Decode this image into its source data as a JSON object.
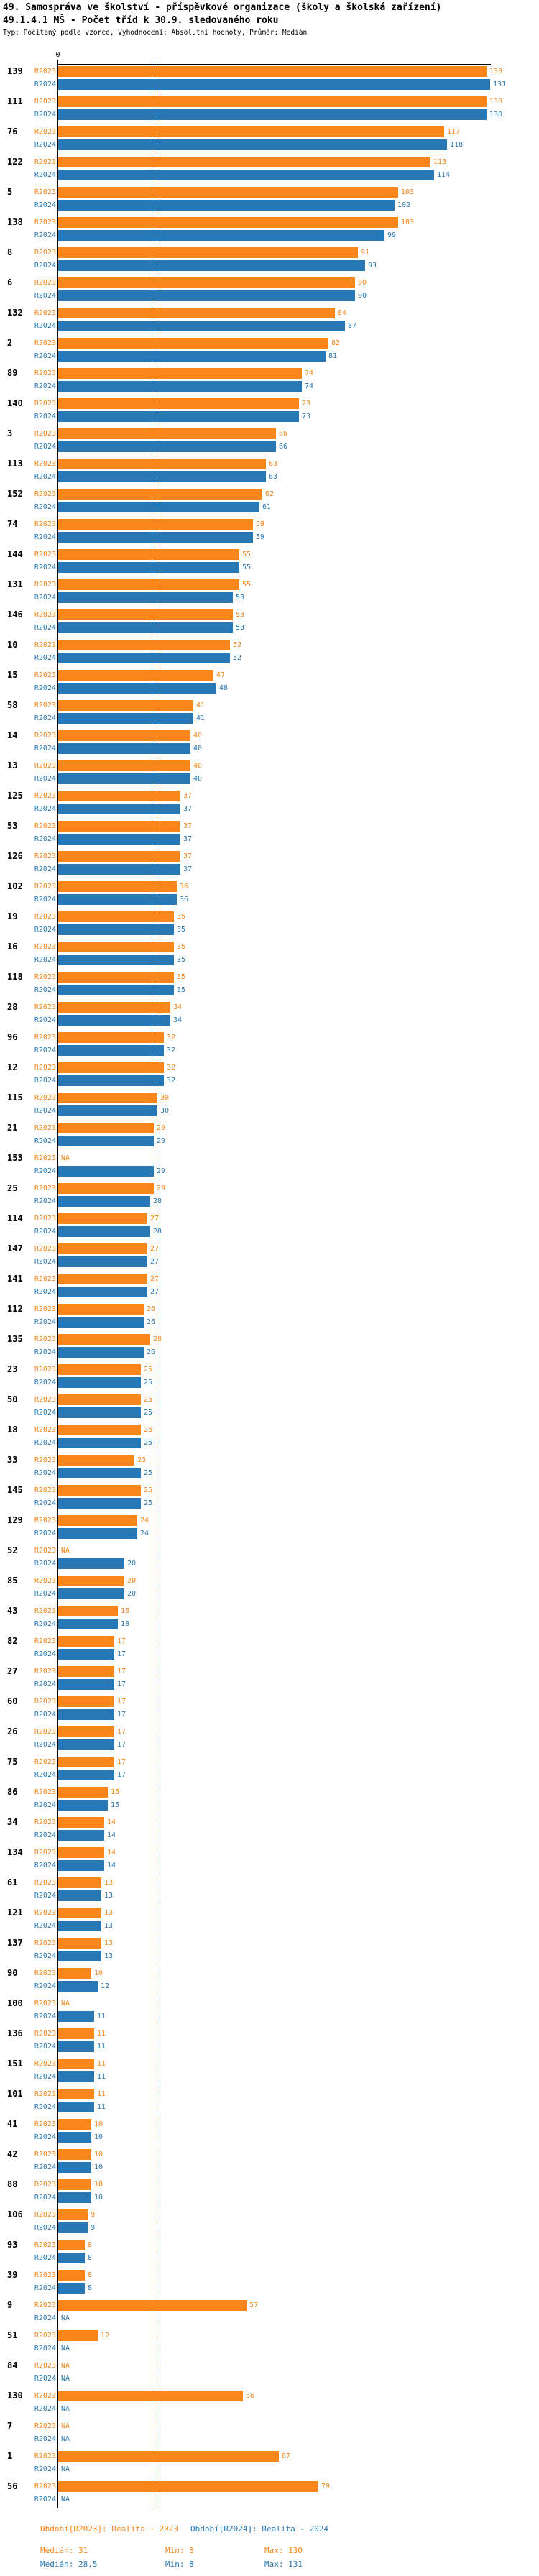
{
  "header": {
    "title_line1": "49. Samospráva ve školství - příspěvkové organizace (školy a školská zařízení)",
    "title_line2": "49.1.4.1 MŠ - Počet tříd k 30.9. sledovaného roku",
    "meta_line": "Typ: Počítaný podle vzorce, Vyhodnocení: Absolutní hodnoty, Průměr: Medián"
  },
  "colors": {
    "r2023": "#F8861B",
    "r2024": "#2878B5",
    "axis": "#000000"
  },
  "chart_data": {
    "type": "bar",
    "orientation": "horizontal",
    "title": "49.1.4.1 MŠ - Počet tříd k 30.9. sledovaného roku",
    "series_labels": [
      "R2023",
      "R2024"
    ],
    "axis_zero_label": "0",
    "na_label": "NA",
    "xlim": [
      0,
      131
    ],
    "grid": false,
    "medians": {
      "R2023": 31,
      "R2024": 28.5
    },
    "groups": [
      {
        "id": "139",
        "R2023": 130,
        "R2024": 131
      },
      {
        "id": "111",
        "R2023": 130,
        "R2024": 130
      },
      {
        "id": "76",
        "R2023": 117,
        "R2024": 118
      },
      {
        "id": "122",
        "R2023": 113,
        "R2024": 114
      },
      {
        "id": "5",
        "R2023": 103,
        "R2024": 102
      },
      {
        "id": "138",
        "R2023": 103,
        "R2024": 99
      },
      {
        "id": "8",
        "R2023": 91,
        "R2024": 93
      },
      {
        "id": "6",
        "R2023": 90,
        "R2024": 90
      },
      {
        "id": "132",
        "R2023": 84,
        "R2024": 87
      },
      {
        "id": "2",
        "R2023": 82,
        "R2024": 81
      },
      {
        "id": "89",
        "R2023": 74,
        "R2024": 74
      },
      {
        "id": "140",
        "R2023": 73,
        "R2024": 73
      },
      {
        "id": "3",
        "R2023": 66,
        "R2024": 66
      },
      {
        "id": "113",
        "R2023": 63,
        "R2024": 63
      },
      {
        "id": "152",
        "R2023": 62,
        "R2024": 61
      },
      {
        "id": "74",
        "R2023": 59,
        "R2024": 59
      },
      {
        "id": "144",
        "R2023": 55,
        "R2024": 55
      },
      {
        "id": "131",
        "R2023": 55,
        "R2024": 53
      },
      {
        "id": "146",
        "R2023": 53,
        "R2024": 53
      },
      {
        "id": "10",
        "R2023": 52,
        "R2024": 52
      },
      {
        "id": "15",
        "R2023": 47,
        "R2024": 48
      },
      {
        "id": "58",
        "R2023": 41,
        "R2024": 41
      },
      {
        "id": "14",
        "R2023": 40,
        "R2024": 40
      },
      {
        "id": "13",
        "R2023": 40,
        "R2024": 40
      },
      {
        "id": "125",
        "R2023": 37,
        "R2024": 37
      },
      {
        "id": "53",
        "R2023": 37,
        "R2024": 37
      },
      {
        "id": "126",
        "R2023": 37,
        "R2024": 37
      },
      {
        "id": "102",
        "R2023": 36,
        "R2024": 36
      },
      {
        "id": "19",
        "R2023": 35,
        "R2024": 35
      },
      {
        "id": "16",
        "R2023": 35,
        "R2024": 35
      },
      {
        "id": "118",
        "R2023": 35,
        "R2024": 35
      },
      {
        "id": "28",
        "R2023": 34,
        "R2024": 34
      },
      {
        "id": "96",
        "R2023": 32,
        "R2024": 32
      },
      {
        "id": "12",
        "R2023": 32,
        "R2024": 32
      },
      {
        "id": "115",
        "R2023": 30,
        "R2024": 30
      },
      {
        "id": "21",
        "R2023": 29,
        "R2024": 29
      },
      {
        "id": "153",
        "R2023": null,
        "R2024": 29
      },
      {
        "id": "25",
        "R2023": 29,
        "R2024": 28
      },
      {
        "id": "114",
        "R2023": 27,
        "R2024": 28
      },
      {
        "id": "147",
        "R2023": 27,
        "R2024": 27
      },
      {
        "id": "141",
        "R2023": 27,
        "R2024": 27
      },
      {
        "id": "112",
        "R2023": 26,
        "R2024": 26
      },
      {
        "id": "135",
        "R2023": 28,
        "R2024": 26
      },
      {
        "id": "23",
        "R2023": 25,
        "R2024": 25
      },
      {
        "id": "50",
        "R2023": 25,
        "R2024": 25
      },
      {
        "id": "18",
        "R2023": 25,
        "R2024": 25
      },
      {
        "id": "33",
        "R2023": 23,
        "R2024": 25
      },
      {
        "id": "145",
        "R2023": 25,
        "R2024": 25
      },
      {
        "id": "129",
        "R2023": 24,
        "R2024": 24
      },
      {
        "id": "52",
        "R2023": null,
        "R2024": 20
      },
      {
        "id": "85",
        "R2023": 20,
        "R2024": 20
      },
      {
        "id": "43",
        "R2023": 18,
        "R2024": 18
      },
      {
        "id": "82",
        "R2023": 17,
        "R2024": 17
      },
      {
        "id": "27",
        "R2023": 17,
        "R2024": 17
      },
      {
        "id": "60",
        "R2023": 17,
        "R2024": 17
      },
      {
        "id": "26",
        "R2023": 17,
        "R2024": 17
      },
      {
        "id": "75",
        "R2023": 17,
        "R2024": 17
      },
      {
        "id": "86",
        "R2023": 15,
        "R2024": 15
      },
      {
        "id": "34",
        "R2023": 14,
        "R2024": 14
      },
      {
        "id": "134",
        "R2023": 14,
        "R2024": 14
      },
      {
        "id": "61",
        "R2023": 13,
        "R2024": 13
      },
      {
        "id": "121",
        "R2023": 13,
        "R2024": 13
      },
      {
        "id": "137",
        "R2023": 13,
        "R2024": 13
      },
      {
        "id": "90",
        "R2023": 10,
        "R2024": 12
      },
      {
        "id": "100",
        "R2023": null,
        "R2024": 11
      },
      {
        "id": "136",
        "R2023": 11,
        "R2024": 11
      },
      {
        "id": "151",
        "R2023": 11,
        "R2024": 11
      },
      {
        "id": "101",
        "R2023": 11,
        "R2024": 11
      },
      {
        "id": "41",
        "R2023": 10,
        "R2024": 10
      },
      {
        "id": "42",
        "R2023": 10,
        "R2024": 10
      },
      {
        "id": "88",
        "R2023": 10,
        "R2024": 10
      },
      {
        "id": "106",
        "R2023": 9,
        "R2024": 9
      },
      {
        "id": "93",
        "R2023": 8,
        "R2024": 8
      },
      {
        "id": "39",
        "R2023": 8,
        "R2024": 8
      },
      {
        "id": "9",
        "R2023": 57,
        "R2024": null
      },
      {
        "id": "51",
        "R2023": 12,
        "R2024": null
      },
      {
        "id": "84",
        "R2023": null,
        "R2024": null
      },
      {
        "id": "130",
        "R2023": 56,
        "R2024": null
      },
      {
        "id": "7",
        "R2023": null,
        "R2024": null
      },
      {
        "id": "1",
        "R2023": 67,
        "R2024": null
      },
      {
        "id": "56",
        "R2023": 79,
        "R2024": null
      }
    ]
  },
  "footer": {
    "legend_2023": "Období[R2023]: Realita - 2023",
    "legend_2024": "Období[R2024]: Realita - 2024",
    "stats_2023": {
      "median": "Medián: 31",
      "min": "Min: 8",
      "max": "Max: 130"
    },
    "stats_2024": {
      "median": "Medián: 28,5",
      "min": "Min: 8",
      "max": "Max: 131"
    }
  }
}
